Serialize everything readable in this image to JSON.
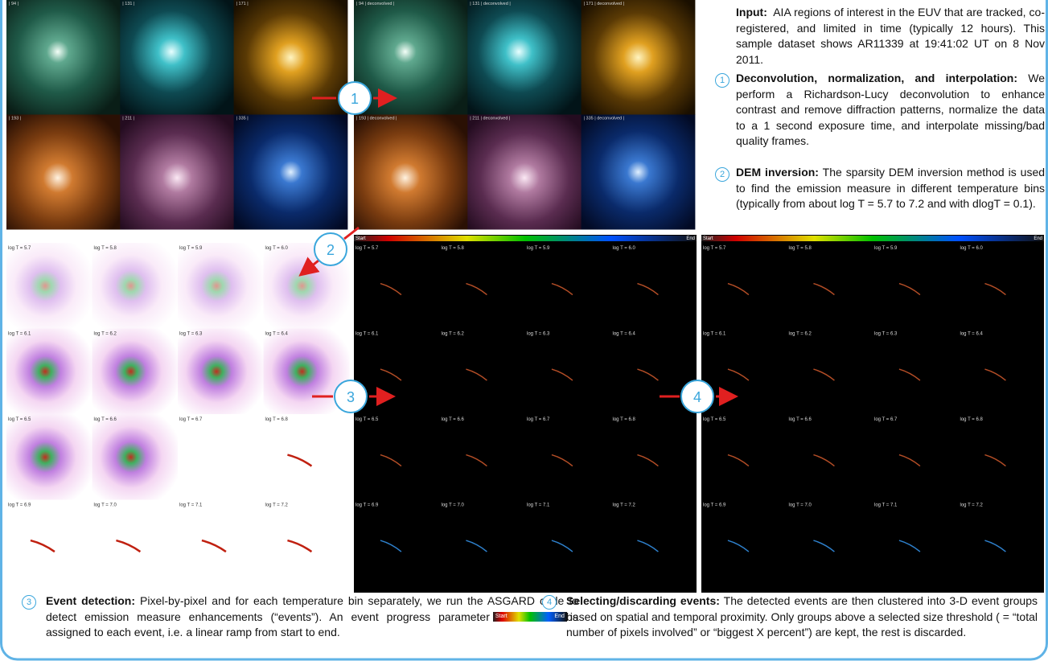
{
  "input": {
    "heading": "Input:",
    "body": "AIA regions of interest in the EUV that are tracked, co-registered, and limited in time (typically 12 hours). This sample dataset shows AR11339 at 19:41:02 UT on 8 Nov 2011."
  },
  "steps": [
    {
      "number": "1",
      "heading": "Deconvolution, normalization, and interpolation:",
      "body": "We perform a Richardson-Lucy deconvolution to enhance contrast and remove diffraction patterns, normalize the data to a 1 second exposure time, and interpolate missing/bad quality frames."
    },
    {
      "number": "2",
      "heading": "DEM inversion:",
      "body": "The sparsity DEM inversion method is used to find the emission measure in different temperature bins (typically from about log T = 5.7 to 7.2 and with dlogT = 0.1)."
    },
    {
      "number": "3",
      "heading": "Event detection:",
      "body_before": "Pixel-by-pixel and for each temperature bin separately, we run the ASGARD code to detect emission measure enhancements (“events”). An event progress parameter",
      "body_after": "is assigned to each event, i.e. a linear ramp from start to end."
    },
    {
      "number": "4",
      "heading": "Selecting/discarding events:",
      "body": "The detected events are then clustered into 3-D event groups based on spatial and temporal proximity. Only groups above a selected size threshold ( = “total number of pixels involved” or “biggest X percent”) are kept, the rest is discarded."
    }
  ],
  "aia_panels": [
    "| 94 |",
    "| 131 |",
    "| 171 |",
    "| 193 |",
    "| 211 |",
    "| 335 |"
  ],
  "deconvolved_panels": [
    "| 94 | deconvolved |",
    "| 131 | deconvolved |",
    "| 171 | deconvolved |",
    "| 193 | deconvolved |",
    "| 211 | deconvolved |",
    "| 335 | deconvolved |"
  ],
  "temperature_bins": [
    "log T = 5.7",
    "log T = 5.8",
    "log T = 5.9",
    "log T = 6.0",
    "log T = 6.1",
    "log T = 6.2",
    "log T = 6.3",
    "log T = 6.4",
    "log T = 6.5",
    "log T = 6.6",
    "log T = 6.7",
    "log T = 6.8",
    "log T = 6.9",
    "log T = 7.0",
    "log T = 7.1",
    "log T = 7.2"
  ],
  "colorbar": {
    "start": "Start",
    "end": "End"
  }
}
